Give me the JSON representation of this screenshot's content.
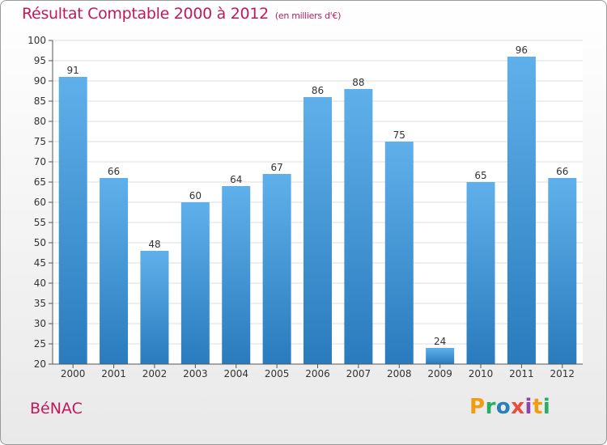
{
  "title": "Résultat Comptable 2000 à 2012",
  "subtitle": "(en milliers d'€)",
  "commune": "BéNAC",
  "logo": {
    "text": "Proxiti",
    "letters": [
      {
        "ch": "P",
        "color": "#f39c12"
      },
      {
        "ch": "r",
        "color": "#27ae60"
      },
      {
        "ch": "o",
        "color": "#2980b9"
      },
      {
        "ch": "x",
        "color": "#e74c3c"
      },
      {
        "ch": "i",
        "color": "#8e44ad"
      },
      {
        "ch": "t",
        "color": "#f39c12"
      },
      {
        "ch": "i",
        "color": "#27ae60"
      }
    ]
  },
  "colors": {
    "bar_top": "#5fb0ea",
    "bar_bottom": "#2a7bbd",
    "title": "#c2185b",
    "grid": "#dddddd"
  },
  "chart_data": {
    "type": "bar",
    "categories": [
      "2000",
      "2001",
      "2002",
      "2003",
      "2004",
      "2005",
      "2006",
      "2007",
      "2008",
      "2009",
      "2010",
      "2011",
      "2012"
    ],
    "values": [
      91,
      66,
      48,
      60,
      64,
      67,
      86,
      88,
      75,
      24,
      65,
      96,
      66
    ],
    "ylim": [
      20,
      100
    ],
    "yticks": [
      20,
      25,
      30,
      35,
      40,
      45,
      50,
      55,
      60,
      65,
      70,
      75,
      80,
      85,
      90,
      95,
      100
    ],
    "grid": true,
    "data_labels": true
  }
}
